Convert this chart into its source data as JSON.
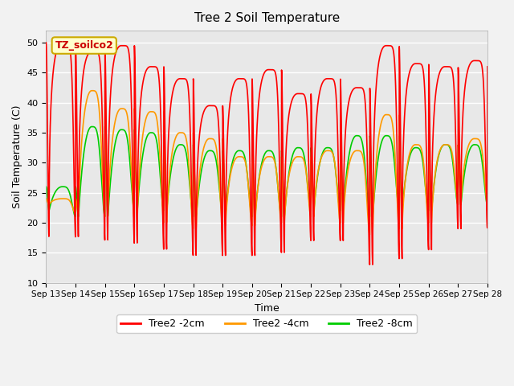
{
  "title": "Tree 2 Soil Temperature",
  "xlabel": "Time",
  "ylabel": "Soil Temperature (C)",
  "ylim": [
    10,
    52
  ],
  "background_color": "#e8e8e8",
  "grid_color": "#ffffff",
  "annotation_text": "TZ_soilco2",
  "annotation_bg": "#ffffcc",
  "annotation_border": "#ccaa00",
  "xtick_labels": [
    "Sep 13",
    "Sep 14",
    "Sep 15",
    "Sep 16",
    "Sep 17",
    "Sep 18",
    "Sep 19",
    "Sep 20",
    "Sep 21",
    "Sep 22",
    "Sep 23",
    "Sep 24",
    "Sep 25",
    "Sep 26",
    "Sep 27",
    "Sep 28"
  ],
  "legend_labels": [
    "Tree2 -2cm",
    "Tree2 -4cm",
    "Tree2 -8cm"
  ],
  "legend_colors": [
    "#ff0000",
    "#ff9900",
    "#00cc00"
  ],
  "line_width": 1.2,
  "red_peaks": [
    50,
    48.5,
    49.5,
    46,
    44,
    39.5,
    44,
    45.5,
    41.5,
    44,
    42.5,
    49.5,
    46.5,
    46,
    47
  ],
  "red_troughs": [
    17.5,
    17.5,
    17,
    16.5,
    15.5,
    14.5,
    14.5,
    14.5,
    15,
    17,
    17,
    13,
    14,
    15.5,
    19
  ],
  "ora_peaks": [
    24,
    42,
    39,
    38.5,
    35,
    34,
    31,
    31,
    31,
    32,
    32,
    38,
    33,
    33,
    34
  ],
  "ora_troughs": [
    23,
    21.5,
    21,
    20.5,
    20,
    19,
    19.5,
    19.5,
    20,
    21,
    20,
    18,
    19,
    20,
    23
  ],
  "grn_peaks": [
    26,
    36,
    35.5,
    35,
    33,
    32,
    32,
    32,
    32.5,
    32.5,
    34.5,
    34.5,
    32.5,
    33,
    33
  ],
  "grn_troughs": [
    22,
    21,
    21,
    22,
    22,
    21,
    21.5,
    21,
    21,
    22,
    22,
    21,
    22,
    22,
    23
  ],
  "peak_phase": 0.55,
  "trough_phase": 0.1,
  "sharpness": 4.0,
  "num_days": 15,
  "samples_per_day": 200
}
